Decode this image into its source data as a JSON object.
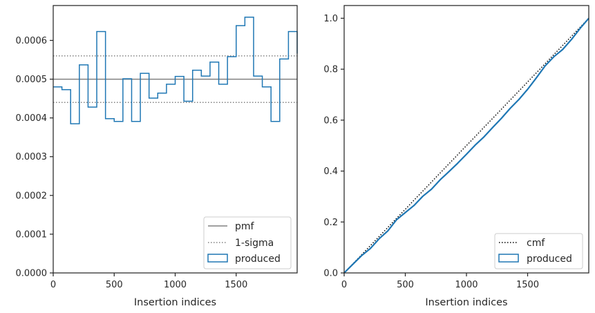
{
  "chart_data": [
    {
      "type": "step",
      "xlabel": "Insertion indices",
      "ylabel": "",
      "xlim": [
        0,
        2000
      ],
      "ylim": [
        0,
        0.00069
      ],
      "xticks": [
        0,
        500,
        1000,
        1500
      ],
      "xtick_labels": [
        "0",
        "500",
        "1000",
        "1500"
      ],
      "yticks": [
        0,
        0.0001,
        0.0002,
        0.0003,
        0.0004,
        0.0005,
        0.0006
      ],
      "ytick_labels": [
        "0.0000",
        "0.0001",
        "0.0002",
        "0.0003",
        "0.0004",
        "0.0005",
        "0.0006"
      ],
      "bin_edges": [
        0,
        71.4,
        142.9,
        214.3,
        285.7,
        357.1,
        428.6,
        500,
        571.4,
        642.9,
        714.3,
        785.7,
        857.1,
        928.6,
        1000,
        1071.4,
        1142.9,
        1214.3,
        1285.7,
        1357.1,
        1428.6,
        1500,
        1571.4,
        1642.9,
        1714.3,
        1785.7,
        1857.1,
        1928.6,
        2000
      ],
      "series": [
        {
          "name": "produced",
          "style": "histogram-step",
          "values": [
            0.00048,
            0.000473,
            0.000385,
            0.000537,
            0.000428,
            0.000623,
            0.000398,
            0.000391,
            0.000501,
            0.000391,
            0.000515,
            0.000451,
            0.000464,
            0.000487,
            0.000507,
            0.000443,
            0.000523,
            0.000508,
            0.000544,
            0.000487,
            0.000558,
            0.000638,
            0.00066,
            0.000508,
            0.00048,
            0.000391,
            0.000552,
            0.000623,
            0.000566
          ]
        },
        {
          "name": "pmf",
          "style": "solid-hline",
          "value": 0.0005
        },
        {
          "name": "1-sigma",
          "style": "dotted-hline",
          "values": [
            0.00056,
            0.00044
          ]
        }
      ],
      "legend": {
        "position": "lower right",
        "entries": [
          "pmf",
          "1-sigma",
          "produced"
        ]
      }
    },
    {
      "type": "line",
      "xlabel": "Insertion indices",
      "ylabel": "",
      "xlim": [
        0,
        2000
      ],
      "ylim": [
        0,
        1.05
      ],
      "xticks": [
        0,
        500,
        1000,
        1500
      ],
      "xtick_labels": [
        "0",
        "500",
        "1000",
        "1500"
      ],
      "yticks": [
        0,
        0.2,
        0.4,
        0.6,
        0.8,
        1.0
      ],
      "ytick_labels": [
        "0.0",
        "0.2",
        "0.4",
        "0.6",
        "0.8",
        "1.0"
      ],
      "series": [
        {
          "name": "cmf",
          "style": "dotted",
          "x": [
            0,
            2000
          ],
          "y": [
            0,
            1.0
          ]
        },
        {
          "name": "produced",
          "style": "step-solid",
          "x": [
            0,
            71.4,
            142.9,
            214.3,
            285.7,
            357.1,
            428.6,
            500,
            571.4,
            642.9,
            714.3,
            785.7,
            857.1,
            928.6,
            1000,
            1071.4,
            1142.9,
            1214.3,
            1285.7,
            1357.1,
            1428.6,
            1500,
            1571.4,
            1642.9,
            1714.3,
            1785.7,
            1857.1,
            1928.6,
            2000
          ],
          "y": [
            0,
            0.034,
            0.068,
            0.096,
            0.134,
            0.165,
            0.209,
            0.237,
            0.265,
            0.301,
            0.329,
            0.366,
            0.398,
            0.431,
            0.466,
            0.502,
            0.534,
            0.571,
            0.607,
            0.646,
            0.681,
            0.721,
            0.766,
            0.813,
            0.849,
            0.877,
            0.916,
            0.96,
            1.0
          ]
        }
      ],
      "legend": {
        "position": "lower right",
        "entries": [
          "cmf",
          "produced"
        ]
      }
    }
  ]
}
